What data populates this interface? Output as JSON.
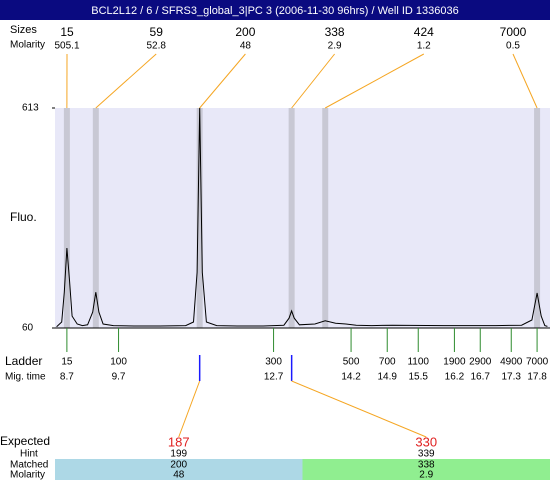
{
  "chart_data": {
    "type": "line",
    "title": "BCL2L12 / 6 / SFRS3_global_3|PC 3 (2006-11-30 96hrs) / Well ID 1336036",
    "y_label": "Fluo.",
    "ylim": [
      60,
      613
    ],
    "yticks": [
      60,
      613
    ],
    "xlim": [
      8.47,
      18.05
    ],
    "color": "#000000",
    "x": [
      8.5,
      8.6,
      8.65,
      8.7,
      8.75,
      8.8,
      8.9,
      9.0,
      9.1,
      9.2,
      9.26,
      9.32,
      9.4,
      9.6,
      10.0,
      10.5,
      11.0,
      11.15,
      11.22,
      11.27,
      11.32,
      11.4,
      11.6,
      12.0,
      12.5,
      12.9,
      13.0,
      13.05,
      13.1,
      13.2,
      13.5,
      13.7,
      13.9,
      14.1,
      14.3,
      14.6,
      15.0,
      16.0,
      17.0,
      17.5,
      17.7,
      17.8,
      17.88,
      17.95,
      18.0
    ],
    "values": [
      63,
      75,
      150,
      261,
      180,
      90,
      70,
      66,
      68,
      100,
      150,
      100,
      70,
      66,
      65,
      65,
      66,
      75,
      200,
      613,
      200,
      75,
      66,
      65,
      65,
      67,
      85,
      103,
      85,
      68,
      70,
      78,
      72,
      70,
      67,
      66,
      67,
      66,
      66,
      67,
      80,
      148,
      90,
      66,
      64
    ],
    "peaks": {
      "size_label": "Sizes",
      "molarity_label": "Molarity",
      "sizes": [
        15,
        59,
        200,
        338,
        424,
        7000
      ],
      "molarity": [
        505.1,
        52.8,
        48,
        2.9,
        1.2,
        0.5
      ],
      "times": [
        8.7,
        9.26,
        11.27,
        13.05,
        13.7,
        17.8
      ]
    },
    "ladder": {
      "label": "Ladder",
      "time_label": "Mig. time",
      "sizes": [
        15,
        100,
        300,
        500,
        700,
        1100,
        1900,
        2900,
        4900,
        7000
      ],
      "times": [
        8.7,
        9.7,
        12.7,
        14.2,
        14.9,
        15.5,
        16.2,
        16.7,
        17.3,
        17.8
      ]
    },
    "expected": {
      "label": "Expected",
      "values": [
        187,
        330
      ],
      "hint_label": "Hint",
      "hint": [
        199,
        339
      ],
      "matched_label": "Matched",
      "matched": [
        200,
        338
      ],
      "molarity_label": "Molarity",
      "molarity": [
        48,
        2.9
      ],
      "colors": [
        "#add8e6",
        "#90ee90"
      ]
    }
  }
}
